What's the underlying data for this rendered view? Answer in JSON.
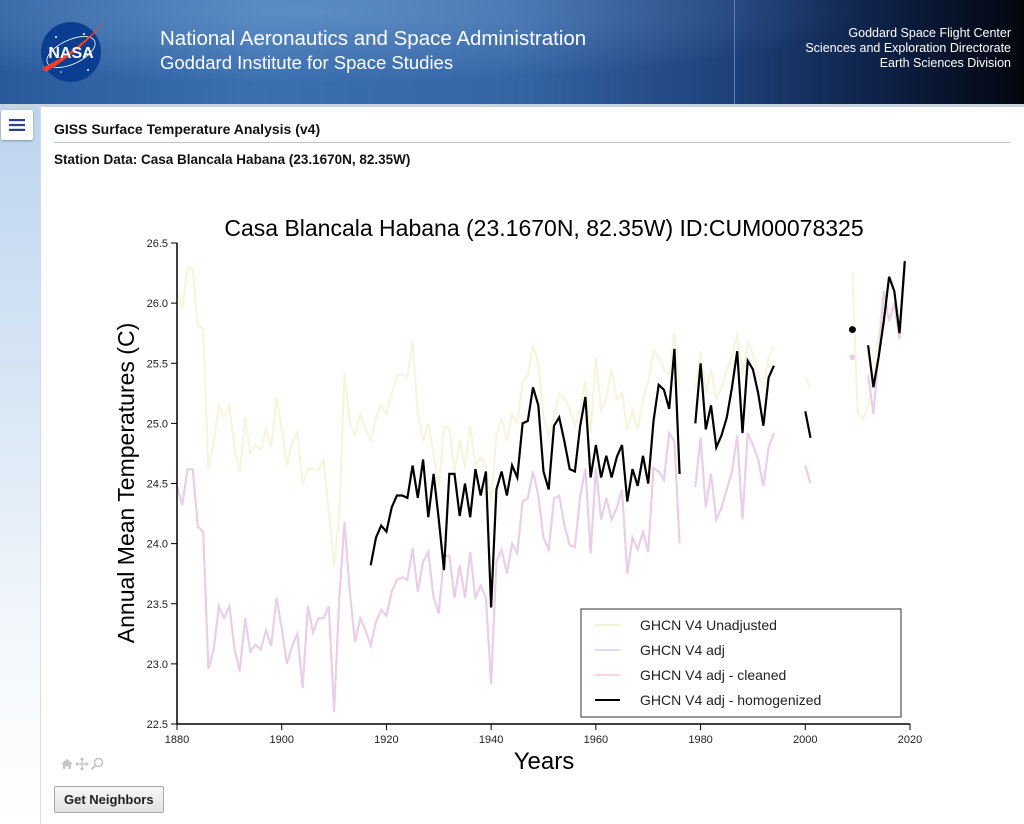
{
  "header": {
    "logo_text": "NASA",
    "agency_name": "National Aeronautics and Space Administration",
    "institute_name": "Goddard Institute for Space Studies",
    "center_lines": [
      "Goddard Space Flight Center",
      "Sciences and Exploration Directorate",
      "Earth Sciences Division"
    ]
  },
  "sidebar": {
    "menu_icon": "hamburger-menu-icon"
  },
  "page": {
    "title": "GISS Surface Temperature Analysis (v4)",
    "station_label": "Station Data: Casa Blancala Habana (23.1670N, 82.35W)"
  },
  "toolbar": {
    "icons": [
      "home-icon",
      "pan-icon",
      "zoom-icon"
    ]
  },
  "buttons": {
    "get_neighbors": "Get Neighbors"
  },
  "colors": {
    "unadjusted": "#f5f5dc",
    "adj": "#d8d8f5",
    "cleaned": "#ebcde8",
    "homogenized": "#000000"
  },
  "chart_data": {
    "type": "line",
    "title": "Casa Blancala Habana (23.1670N, 82.35W) ID:CUM00078325",
    "xlabel": "Years",
    "ylabel": "Annual Mean Temperatures (C)",
    "xlim": [
      1880,
      2020
    ],
    "ylim": [
      22.5,
      26.5
    ],
    "xticks": [
      1880,
      1900,
      1920,
      1940,
      1960,
      1980,
      2000,
      2020
    ],
    "yticks": [
      "22.5",
      "23.0",
      "23.5",
      "24.0",
      "24.5",
      "25.0",
      "25.5",
      "26.0",
      "26.5"
    ],
    "grid": false,
    "legend_position": "bottom-right",
    "x": [
      1880,
      1881,
      1882,
      1883,
      1884,
      1885,
      1886,
      1887,
      1888,
      1889,
      1890,
      1891,
      1892,
      1893,
      1894,
      1895,
      1896,
      1897,
      1898,
      1899,
      1900,
      1901,
      1902,
      1903,
      1904,
      1905,
      1906,
      1907,
      1908,
      1909,
      1910,
      1911,
      1912,
      1913,
      1914,
      1915,
      1916,
      1917,
      1918,
      1919,
      1920,
      1921,
      1922,
      1923,
      1924,
      1925,
      1926,
      1927,
      1928,
      1929,
      1930,
      1931,
      1932,
      1933,
      1934,
      1935,
      1936,
      1937,
      1938,
      1939,
      1940,
      1941,
      1942,
      1943,
      1944,
      1945,
      1946,
      1947,
      1948,
      1949,
      1950,
      1951,
      1952,
      1953,
      1954,
      1955,
      1956,
      1957,
      1958,
      1959,
      1960,
      1961,
      1962,
      1963,
      1964,
      1965,
      1966,
      1967,
      1968,
      1969,
      1970,
      1971,
      1972,
      1973,
      1974,
      1975,
      1976,
      1977,
      1978,
      1979,
      1980,
      1981,
      1982,
      1983,
      1984,
      1985,
      1986,
      1987,
      1988,
      1989,
      1990,
      1991,
      1992,
      1993,
      1994,
      1995,
      1996,
      1997,
      1998,
      1999,
      2000,
      2001,
      2002,
      2003,
      2004,
      2005,
      2006,
      2007,
      2008,
      2009,
      2010,
      2011,
      2012,
      2013,
      2014,
      2015,
      2016,
      2017,
      2018,
      2019
    ],
    "series": [
      {
        "name": "GHCN V4 Unadjusted",
        "color_key": "unadjusted",
        "values": [
          26.1,
          25.95,
          26.3,
          26.28,
          25.82,
          25.78,
          24.62,
          24.85,
          25.15,
          25.05,
          25.15,
          24.78,
          24.6,
          25.05,
          24.75,
          24.82,
          24.78,
          24.95,
          24.8,
          25.22,
          24.95,
          24.65,
          24.85,
          24.93,
          24.5,
          24.62,
          24.62,
          24.61,
          24.7,
          24.25,
          23.82,
          24.25,
          25.42,
          25.0,
          24.9,
          25.08,
          24.95,
          24.86,
          25.05,
          25.15,
          25.08,
          25.25,
          25.4,
          25.41,
          25.38,
          25.68,
          25.08,
          24.85,
          25.0,
          24.74,
          24.48,
          24.97,
          24.97,
          24.6,
          24.86,
          24.63,
          24.98,
          24.65,
          24.72,
          24.65,
          24.35,
          24.9,
          25.05,
          24.85,
          25.08,
          25.0,
          25.35,
          25.4,
          25.65,
          25.5,
          25.05,
          24.9,
          25.05,
          25.25,
          25.2,
          25.12,
          24.98,
          25.12,
          25.35,
          24.92,
          25.55,
          25.1,
          25.2,
          25.45,
          25.2,
          25.25,
          24.95,
          25.1,
          24.95,
          25.2,
          25.35,
          25.6,
          25.55,
          25.45,
          25.4,
          25.75,
          25.3,
          null,
          null,
          25.28,
          25.6,
          25.25,
          25.45,
          25.2,
          25.3,
          25.45,
          25.55,
          25.75,
          25.4,
          25.68,
          25.58,
          25.4,
          25.3,
          25.55,
          25.65,
          null,
          null,
          null,
          null,
          null,
          25.38,
          25.3,
          null,
          null,
          null,
          null,
          null,
          null,
          null,
          26.25,
          25.1,
          25.03,
          25.15,
          25.4,
          25.75,
          26.1,
          25.95,
          25.95,
          25.72,
          26.25
        ]
      },
      {
        "name": "GHCN V4 adj",
        "color_key": "adj",
        "values": [
          24.48,
          24.32,
          24.62,
          24.62,
          24.14,
          24.1,
          22.96,
          23.12,
          23.48,
          23.38,
          23.48,
          23.12,
          22.94,
          23.38,
          23.1,
          23.16,
          23.12,
          23.28,
          23.15,
          23.55,
          23.3,
          23.0,
          23.15,
          23.25,
          22.8,
          23.48,
          23.26,
          23.38,
          23.38,
          23.48,
          22.6,
          23.55,
          24.18,
          23.6,
          23.18,
          23.38,
          23.28,
          23.15,
          23.35,
          23.45,
          23.4,
          23.6,
          23.7,
          23.72,
          23.7,
          23.96,
          23.6,
          23.85,
          23.93,
          23.55,
          23.42,
          23.9,
          23.9,
          23.55,
          23.82,
          23.55,
          23.93,
          23.55,
          23.65,
          23.55,
          22.83,
          23.85,
          23.95,
          23.75,
          24.0,
          23.92,
          24.35,
          24.38,
          24.6,
          24.4,
          24.05,
          23.95,
          24.37,
          24.4,
          24.15,
          23.99,
          23.97,
          24.4,
          24.62,
          23.92,
          24.63,
          24.2,
          24.38,
          24.2,
          24.3,
          24.45,
          23.75,
          24.05,
          23.95,
          24.1,
          23.93,
          24.63,
          24.6,
          24.53,
          24.92,
          24.85,
          24.0,
          null,
          null,
          24.47,
          24.88,
          24.3,
          24.58,
          24.2,
          24.3,
          24.45,
          24.6,
          24.9,
          24.2,
          24.92,
          24.82,
          24.7,
          24.48,
          24.8,
          24.92,
          null,
          null,
          null,
          null,
          null,
          24.65,
          24.5,
          null,
          null,
          null,
          null,
          null,
          null,
          null,
          25.55,
          null,
          null,
          25.4,
          25.08,
          25.55,
          26.1,
          25.85,
          26.0,
          25.7,
          26.3
        ]
      },
      {
        "name": "GHCN V4 adj - cleaned",
        "color_key": "cleaned",
        "values": [
          24.48,
          24.32,
          24.62,
          24.62,
          24.14,
          24.1,
          22.96,
          23.12,
          23.48,
          23.38,
          23.48,
          23.12,
          22.94,
          23.38,
          23.1,
          23.16,
          23.12,
          23.28,
          23.15,
          23.55,
          23.3,
          23.0,
          23.15,
          23.25,
          22.8,
          23.48,
          23.26,
          23.38,
          23.38,
          23.48,
          22.6,
          23.55,
          24.18,
          23.6,
          23.18,
          23.38,
          23.28,
          23.15,
          23.35,
          23.45,
          23.4,
          23.6,
          23.7,
          23.72,
          23.7,
          23.96,
          23.6,
          23.85,
          23.93,
          23.55,
          23.42,
          23.9,
          23.9,
          23.55,
          23.82,
          23.55,
          23.93,
          23.55,
          23.65,
          23.55,
          22.83,
          23.85,
          23.95,
          23.75,
          24.0,
          23.92,
          24.35,
          24.38,
          24.6,
          24.4,
          24.05,
          23.95,
          24.37,
          24.4,
          24.15,
          23.99,
          23.97,
          24.4,
          24.62,
          23.92,
          24.63,
          24.2,
          24.38,
          24.2,
          24.3,
          24.45,
          23.75,
          24.05,
          23.95,
          24.1,
          23.93,
          24.63,
          24.6,
          24.53,
          24.92,
          24.85,
          24.0,
          null,
          null,
          24.47,
          24.88,
          24.3,
          24.58,
          24.2,
          24.3,
          24.45,
          24.6,
          24.9,
          24.2,
          24.92,
          24.82,
          24.7,
          24.48,
          24.8,
          24.92,
          null,
          null,
          null,
          null,
          null,
          24.65,
          24.5,
          null,
          null,
          null,
          null,
          null,
          null,
          null,
          25.55,
          null,
          null,
          25.4,
          25.08,
          25.55,
          26.1,
          25.85,
          26.0,
          25.7,
          26.3
        ]
      },
      {
        "name": "GHCN V4 adj - homogenized",
        "color_key": "homogenized",
        "values": [
          null,
          null,
          null,
          null,
          null,
          null,
          null,
          null,
          null,
          null,
          null,
          null,
          null,
          null,
          null,
          null,
          null,
          null,
          null,
          null,
          null,
          null,
          null,
          null,
          null,
          null,
          null,
          null,
          null,
          null,
          null,
          null,
          null,
          null,
          null,
          null,
          null,
          23.82,
          24.05,
          24.15,
          24.1,
          24.3,
          24.4,
          24.4,
          24.38,
          24.65,
          24.38,
          24.7,
          24.22,
          24.58,
          24.2,
          23.78,
          24.58,
          24.58,
          24.23,
          24.5,
          24.22,
          24.62,
          24.4,
          24.6,
          23.47,
          24.45,
          24.6,
          24.4,
          24.65,
          24.55,
          25.0,
          25.02,
          25.3,
          25.15,
          24.6,
          24.45,
          24.98,
          25.05,
          24.85,
          24.62,
          24.6,
          24.98,
          25.22,
          24.55,
          24.82,
          24.55,
          24.73,
          24.55,
          24.72,
          24.82,
          24.35,
          24.62,
          24.48,
          24.73,
          24.5,
          25.02,
          25.32,
          25.28,
          25.12,
          25.62,
          24.58,
          null,
          null,
          25.0,
          25.5,
          24.95,
          25.15,
          24.8,
          24.9,
          25.05,
          25.3,
          25.6,
          24.92,
          25.52,
          25.45,
          25.25,
          24.98,
          25.38,
          25.48,
          null,
          null,
          null,
          null,
          null,
          25.1,
          24.88,
          null,
          null,
          null,
          null,
          null,
          null,
          null,
          25.78,
          null,
          null,
          25.65,
          25.3,
          25.55,
          25.85,
          26.22,
          26.1,
          25.75,
          26.35
        ]
      }
    ],
    "isolated_markers": [
      {
        "series": "GHCN V4 adj - homogenized",
        "x": 2009,
        "y": 25.78
      },
      {
        "series": "GHCN V4 adj - cleaned",
        "x": 2009,
        "y": 25.55
      }
    ]
  }
}
